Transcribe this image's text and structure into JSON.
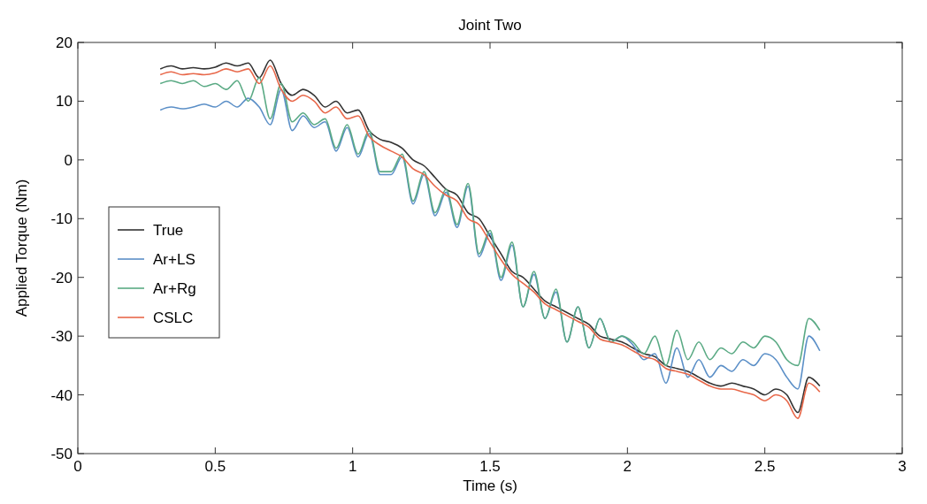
{
  "chart_data": {
    "type": "line",
    "title": "Joint Two",
    "xlabel": "Time (s)",
    "ylabel": "Applied Torque (Nm)",
    "x": [
      0.3,
      0.34,
      0.38,
      0.42,
      0.46,
      0.5,
      0.54,
      0.58,
      0.62,
      0.66,
      0.7,
      0.74,
      0.78,
      0.82,
      0.86,
      0.9,
      0.94,
      0.98,
      1.02,
      1.06,
      1.1,
      1.14,
      1.18,
      1.22,
      1.26,
      1.3,
      1.34,
      1.38,
      1.42,
      1.46,
      1.5,
      1.54,
      1.58,
      1.62,
      1.66,
      1.7,
      1.74,
      1.78,
      1.82,
      1.86,
      1.9,
      1.94,
      1.98,
      2.02,
      2.06,
      2.1,
      2.14,
      2.18,
      2.22,
      2.26,
      2.3,
      2.34,
      2.38,
      2.42,
      2.46,
      2.5,
      2.54,
      2.58,
      2.62,
      2.66,
      2.7
    ],
    "series": [
      {
        "name": "True",
        "color": "#333333",
        "values": [
          15.5,
          16,
          15.5,
          15.7,
          15.5,
          15.8,
          16.5,
          16,
          16.5,
          14,
          17,
          13,
          11,
          12,
          11,
          9,
          10,
          8,
          8.5,
          5,
          3.5,
          3,
          2,
          0,
          -1,
          -3,
          -5,
          -6,
          -9,
          -10,
          -13,
          -16,
          -19,
          -20,
          -22,
          -24,
          -25,
          -26,
          -27,
          -28,
          -30,
          -30.5,
          -31,
          -32,
          -33,
          -33.5,
          -35,
          -35.5,
          -36,
          -37,
          -38,
          -38.5,
          -38,
          -38.5,
          -39,
          -40,
          -39,
          -40,
          -43,
          -37,
          -38.5
        ]
      },
      {
        "name": "Ar+LS",
        "color": "#5b8fc7",
        "values": [
          8.5,
          9,
          8.7,
          9,
          9.5,
          9,
          10,
          9,
          10.5,
          9,
          6,
          12,
          5,
          7.5,
          5.5,
          6.5,
          1.5,
          5.5,
          0.5,
          4.5,
          -2.5,
          -2.5,
          0.5,
          -7.5,
          -2.5,
          -9.5,
          -5.5,
          -11.5,
          -4.5,
          -16.5,
          -12.5,
          -20.5,
          -14.5,
          -25,
          -19.5,
          -27,
          -22.5,
          -31,
          -25,
          -32,
          -27,
          -31,
          -30,
          -31.5,
          -34,
          -33,
          -38,
          -32,
          -37,
          -34,
          -37,
          -35,
          -36,
          -34,
          -35,
          -33,
          -34,
          -37,
          -39,
          -30,
          -32.5
        ]
      },
      {
        "name": "Ar+Rg",
        "color": "#5aaa84",
        "values": [
          13,
          13.5,
          13,
          13.5,
          12.5,
          13,
          12,
          13.5,
          10,
          14,
          7,
          13,
          6.5,
          8,
          6,
          7,
          2,
          6,
          1,
          5,
          -2,
          -2,
          1,
          -7,
          -2,
          -9,
          -5,
          -11,
          -4,
          -16,
          -12,
          -20,
          -14,
          -25,
          -19,
          -27,
          -22,
          -31,
          -25,
          -32,
          -27,
          -31,
          -30,
          -31,
          -33,
          -30,
          -35,
          -29,
          -34,
          -31,
          -34,
          -32,
          -33,
          -31,
          -32,
          -30,
          -31,
          -34,
          -35,
          -27,
          -29
        ]
      },
      {
        "name": "CSLC",
        "color": "#e8684a",
        "values": [
          14.5,
          15,
          14.5,
          14.7,
          14.5,
          14.8,
          15.5,
          15,
          15.5,
          13,
          16,
          12,
          10,
          11,
          10,
          8,
          9,
          7,
          7.5,
          4,
          2.5,
          1.5,
          0.5,
          -1.5,
          -2.5,
          -4.5,
          -6,
          -7,
          -10,
          -11,
          -14,
          -17,
          -19.5,
          -21,
          -22.5,
          -24.5,
          -25.5,
          -26.5,
          -27.5,
          -28.5,
          -30.5,
          -31,
          -31.5,
          -32.5,
          -33.5,
          -34,
          -35.5,
          -36,
          -36.5,
          -37.5,
          -38.5,
          -39,
          -39,
          -39.5,
          -40,
          -41,
          -40,
          -41,
          -44,
          -38,
          -39.5
        ]
      }
    ],
    "xlim": [
      0,
      3
    ],
    "xticks": [
      0,
      0.5,
      1,
      1.5,
      2,
      2.5,
      3
    ],
    "ylim": [
      -50,
      20
    ],
    "yticks": [
      -50,
      -40,
      -30,
      -20,
      -10,
      0,
      10,
      20
    ],
    "legend": "left",
    "line_style": "solid",
    "marker": "none",
    "grid": false
  }
}
